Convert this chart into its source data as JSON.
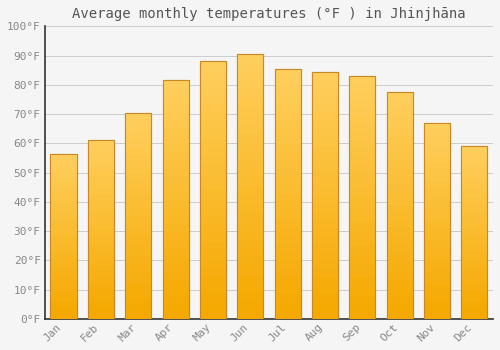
{
  "title": "Average monthly temperatures (°F ) in Jhinjhāna",
  "months": [
    "Jan",
    "Feb",
    "Mar",
    "Apr",
    "May",
    "Jun",
    "Jul",
    "Aug",
    "Sep",
    "Oct",
    "Nov",
    "Dec"
  ],
  "values": [
    56.5,
    61.0,
    70.5,
    81.5,
    88.0,
    90.5,
    85.5,
    84.5,
    83.0,
    77.5,
    67.0,
    59.0
  ],
  "bar_color_gradient_top": "#FFD060",
  "bar_color_gradient_bottom": "#F5A800",
  "bar_edge_color": "#C8882A",
  "ylim": [
    0,
    100
  ],
  "yticks": [
    0,
    10,
    20,
    30,
    40,
    50,
    60,
    70,
    80,
    90,
    100
  ],
  "ytick_labels": [
    "0°F",
    "10°F",
    "20°F",
    "30°F",
    "40°F",
    "50°F",
    "60°F",
    "70°F",
    "80°F",
    "90°F",
    "100°F"
  ],
  "background_color": "#F5F5F5",
  "plot_bg_color": "#F5F5F5",
  "grid_color": "#CCCCCC",
  "title_fontsize": 10,
  "tick_fontsize": 8,
  "font_family": "monospace",
  "tick_color": "#888888",
  "title_color": "#555555",
  "spine_color": "#333333",
  "bar_width": 0.7
}
